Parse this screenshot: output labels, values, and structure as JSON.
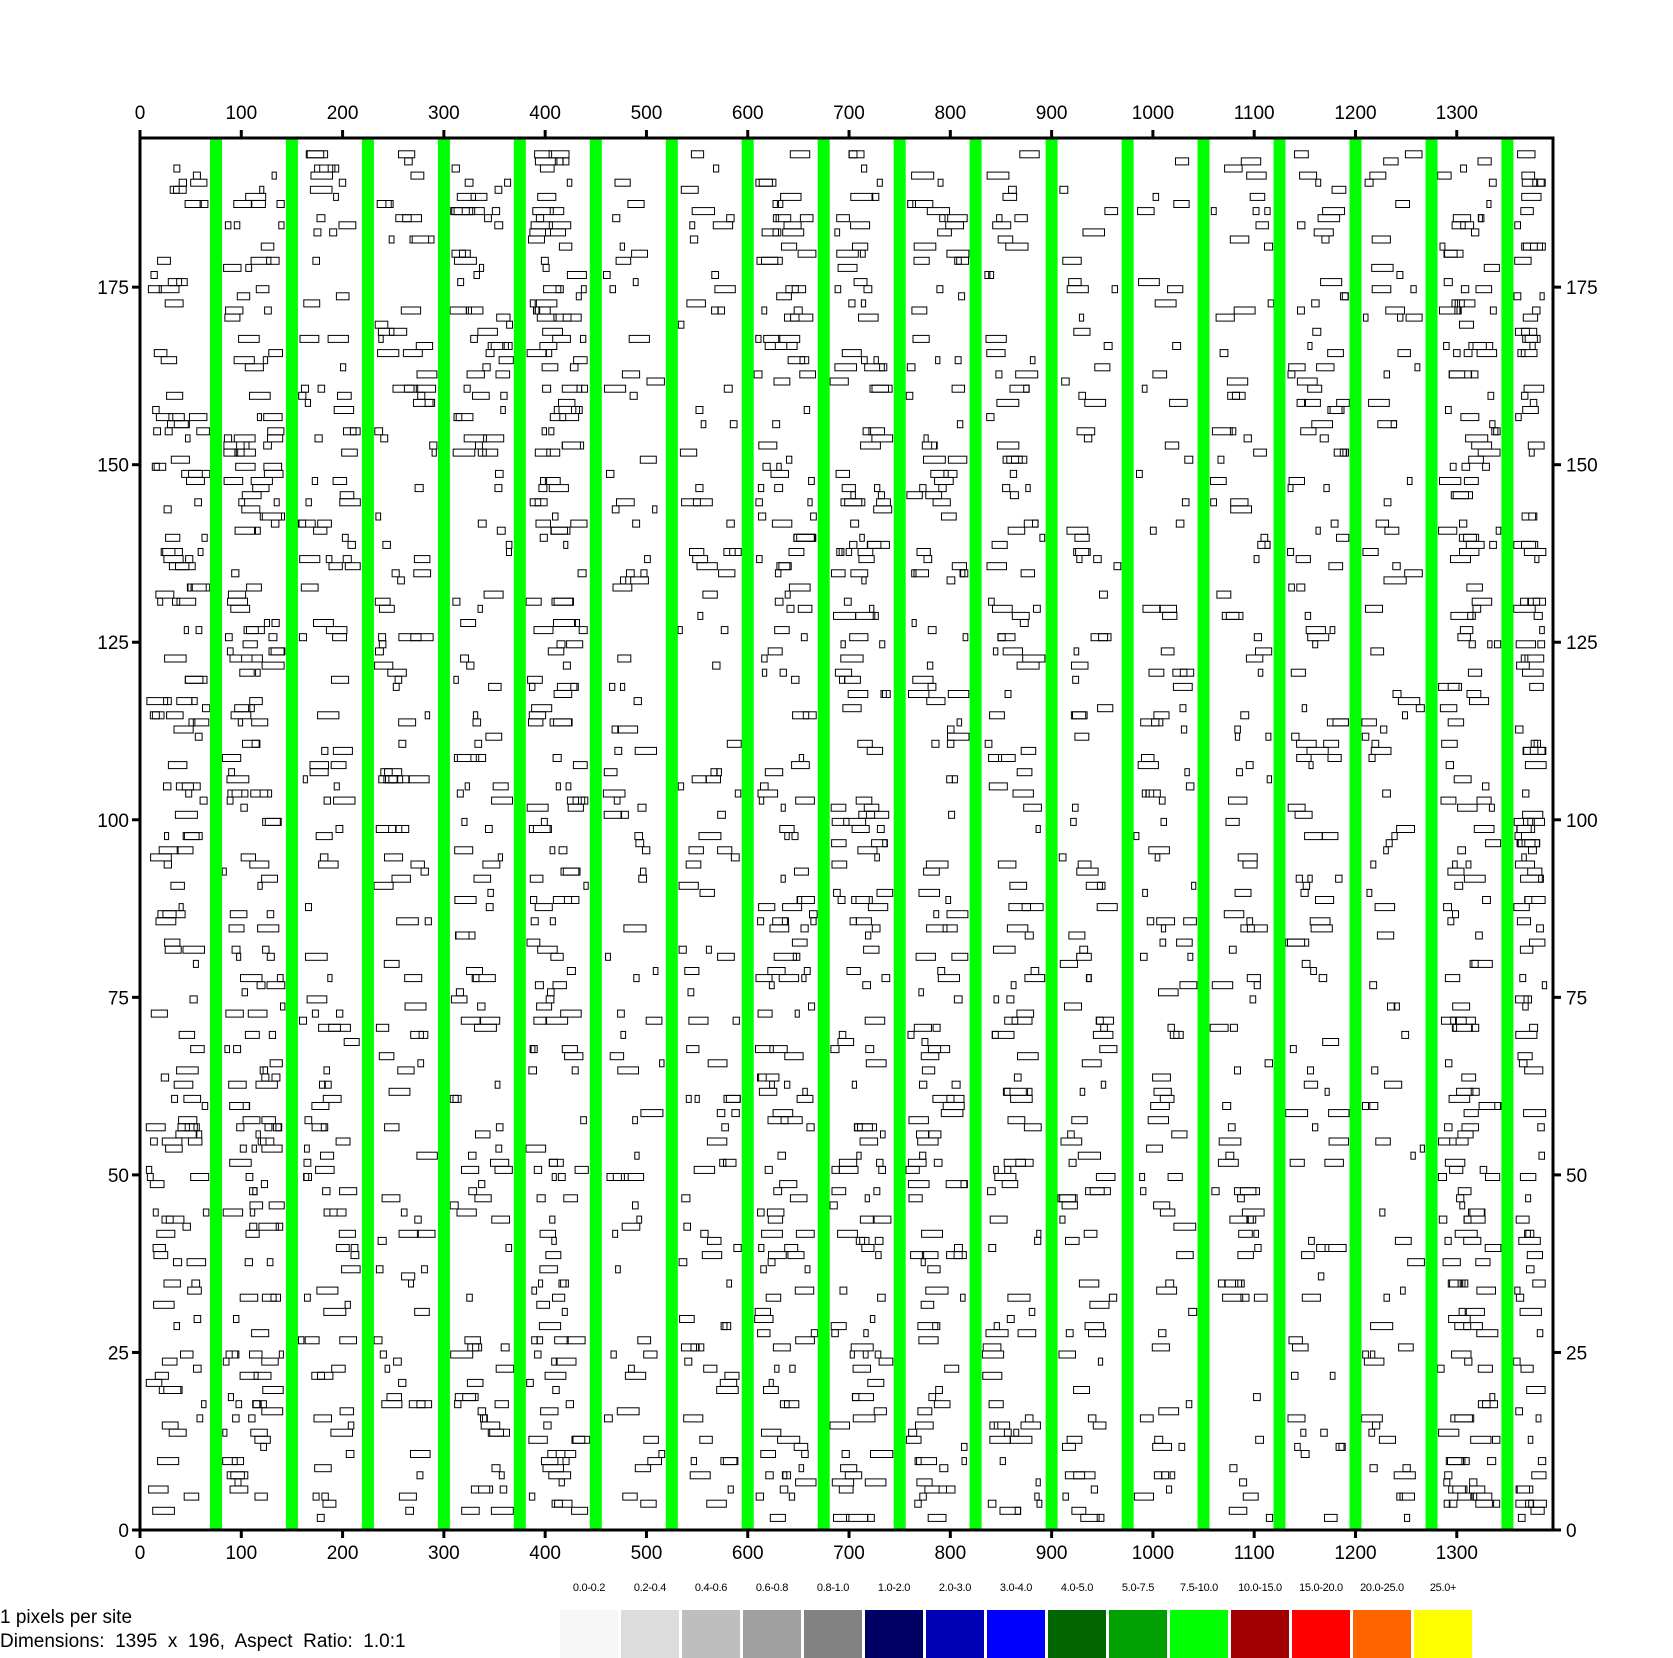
{
  "chart_data": {
    "type": "heatmap",
    "title": "",
    "xlabel": "",
    "ylabel": "",
    "xlim": [
      0,
      1395
    ],
    "ylim": [
      0,
      196
    ],
    "x_ticks": [
      "0",
      "100",
      "200",
      "300",
      "400",
      "500",
      "600",
      "700",
      "800",
      "900",
      "1000",
      "1100",
      "1200",
      "1300"
    ],
    "y_ticks": [
      "0",
      "25",
      "50",
      "75",
      "100",
      "125",
      "150",
      "175"
    ],
    "x_tick_values": [
      0,
      100,
      200,
      300,
      400,
      500,
      600,
      700,
      800,
      900,
      1000,
      1100,
      1200,
      1300
    ],
    "y_tick_values": [
      0,
      25,
      50,
      75,
      100,
      125,
      150,
      175
    ],
    "columns_x": [
      75,
      150,
      225,
      300,
      375,
      450,
      525,
      600,
      675,
      750,
      825,
      900,
      975,
      1050,
      1125,
      1200,
      1275,
      1350
    ],
    "legend": [
      {
        "label": "0.0-0.2",
        "color": "#f7f7f7"
      },
      {
        "label": "0.2-0.4",
        "color": "#dcdcdc"
      },
      {
        "label": "0.4-0.6",
        "color": "#bebebe"
      },
      {
        "label": "0.6-0.8",
        "color": "#a0a0a0"
      },
      {
        "label": "0.8-1.0",
        "color": "#828282"
      },
      {
        "label": "1.0-2.0",
        "color": "#000064"
      },
      {
        "label": "2.0-3.0",
        "color": "#0000b4"
      },
      {
        "label": "3.0-4.0",
        "color": "#0000ff"
      },
      {
        "label": "4.0-5.0",
        "color": "#006400"
      },
      {
        "label": "5.0-7.5",
        "color": "#00a000"
      },
      {
        "label": "7.5-10.0",
        "color": "#00ff00"
      },
      {
        "label": "10.0-15.0",
        "color": "#a00000"
      },
      {
        "label": "15.0-20.0",
        "color": "#ff0000"
      },
      {
        "label": "20.0-25.0",
        "color": "#ff6400"
      },
      {
        "label": "25.0+",
        "color": "#ffff00"
      }
    ],
    "column_color": "#00ff00",
    "cell_outline_color": "#000000"
  },
  "info": {
    "scale": "1 pixels per site",
    "dimensions": "Dimensions:  1395  x  196,  Aspect  Ratio:  1.0:1"
  }
}
